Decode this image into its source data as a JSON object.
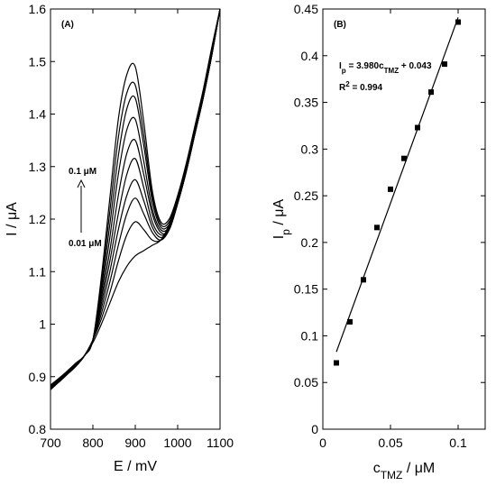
{
  "chart_data": [
    {
      "panel_label": "(A)",
      "type": "line",
      "xlabel": "E / mV",
      "ylabel": "I / μA",
      "xlim": [
        700,
        1100
      ],
      "ylim": [
        0.8,
        1.6
      ],
      "xticks": [
        700,
        800,
        900,
        1000,
        1100
      ],
      "yticks": [
        0.8,
        0.9,
        1.0,
        1.1,
        1.2,
        1.3,
        1.4,
        1.5,
        1.6
      ],
      "xtick_labels": [
        "700",
        "800",
        "900",
        "1000",
        "1100"
      ],
      "ytick_labels": [
        "0.8",
        "0.9",
        "1",
        "1.1",
        "1.2",
        "1.3",
        "1.4",
        "1.5",
        "1.6"
      ],
      "grid": false,
      "arrow_top_label": "0.1 μM",
      "arrow_bottom_label": "0.01 μM",
      "x": [
        700,
        720,
        740,
        760,
        780,
        800,
        820,
        840,
        860,
        880,
        900,
        920,
        940,
        960,
        980,
        1000,
        1020,
        1040,
        1060,
        1080,
        1100
      ],
      "series": [
        {
          "values": [
            0.875,
            0.89,
            0.905,
            0.92,
            0.94,
            0.965,
            1.0,
            1.04,
            1.08,
            1.11,
            1.13,
            1.14,
            1.15,
            1.16,
            1.19,
            1.24,
            1.3,
            1.37,
            1.44,
            1.52,
            1.6
          ]
        },
        {
          "values": [
            0.876,
            0.89,
            0.905,
            0.92,
            0.94,
            0.97,
            1.01,
            1.06,
            1.12,
            1.17,
            1.195,
            1.18,
            1.16,
            1.16,
            1.185,
            1.235,
            1.295,
            1.365,
            1.435,
            1.515,
            1.6
          ]
        },
        {
          "values": [
            0.877,
            0.89,
            0.905,
            0.92,
            0.94,
            0.97,
            1.02,
            1.08,
            1.15,
            1.21,
            1.24,
            1.21,
            1.175,
            1.16,
            1.18,
            1.23,
            1.29,
            1.36,
            1.43,
            1.51,
            1.6
          ]
        },
        {
          "values": [
            0.878,
            0.89,
            0.905,
            0.92,
            0.94,
            0.97,
            1.03,
            1.1,
            1.18,
            1.245,
            1.275,
            1.235,
            1.185,
            1.165,
            1.18,
            1.23,
            1.29,
            1.36,
            1.43,
            1.51,
            1.6
          ]
        },
        {
          "values": [
            0.879,
            0.892,
            0.906,
            0.92,
            0.94,
            0.97,
            1.04,
            1.12,
            1.21,
            1.285,
            1.315,
            1.26,
            1.195,
            1.17,
            1.18,
            1.23,
            1.29,
            1.36,
            1.43,
            1.51,
            1.6
          ]
        },
        {
          "values": [
            0.88,
            0.893,
            0.907,
            0.922,
            0.94,
            0.97,
            1.05,
            1.14,
            1.245,
            1.325,
            1.35,
            1.285,
            1.21,
            1.175,
            1.18,
            1.23,
            1.29,
            1.36,
            1.43,
            1.51,
            1.6
          ]
        },
        {
          "values": [
            0.881,
            0.894,
            0.908,
            0.923,
            0.94,
            0.97,
            1.06,
            1.165,
            1.285,
            1.37,
            1.39,
            1.31,
            1.22,
            1.18,
            1.185,
            1.23,
            1.29,
            1.36,
            1.43,
            1.51,
            1.6
          ]
        },
        {
          "values": [
            0.882,
            0.895,
            0.909,
            0.924,
            0.94,
            0.97,
            1.07,
            1.19,
            1.32,
            1.41,
            1.43,
            1.34,
            1.235,
            1.185,
            1.19,
            1.235,
            1.295,
            1.365,
            1.435,
            1.515,
            1.6
          ]
        },
        {
          "values": [
            0.883,
            0.896,
            0.91,
            0.925,
            0.94,
            0.97,
            1.08,
            1.215,
            1.355,
            1.44,
            1.455,
            1.36,
            1.245,
            1.19,
            1.195,
            1.24,
            1.3,
            1.37,
            1.44,
            1.52,
            1.6
          ]
        },
        {
          "values": [
            0.884,
            0.897,
            0.911,
            0.926,
            0.94,
            0.97,
            1.09,
            1.24,
            1.39,
            1.475,
            1.49,
            1.385,
            1.255,
            1.195,
            1.2,
            1.245,
            1.305,
            1.375,
            1.445,
            1.525,
            1.6
          ]
        }
      ]
    },
    {
      "panel_label": "(B)",
      "type": "scatter",
      "xlabel": "c_TMZ / μM",
      "ylabel": "I_p / μA",
      "xlim": [
        0,
        0.12
      ],
      "ylim": [
        0,
        0.45
      ],
      "xticks": [
        0,
        0.05,
        0.1
      ],
      "yticks": [
        0,
        0.05,
        0.1,
        0.15,
        0.2,
        0.25,
        0.3,
        0.35,
        0.4,
        0.45
      ],
      "xtick_labels": [
        "0",
        "0.05",
        "0.1"
      ],
      "ytick_labels": [
        "0",
        "0.05",
        "0.1",
        "0.15",
        "0.2",
        "0.25",
        "0.3",
        "0.35",
        "0.4",
        "0.45"
      ],
      "grid": false,
      "equation": "I_p = 3.980c_TMZ + 0.043",
      "r_squared": "R² = 0.994",
      "points": {
        "x": [
          0.01,
          0.02,
          0.03,
          0.04,
          0.05,
          0.06,
          0.07,
          0.08,
          0.09,
          0.1
        ],
        "y": [
          0.071,
          0.115,
          0.16,
          0.216,
          0.257,
          0.29,
          0.323,
          0.361,
          0.391,
          0.436
        ]
      },
      "fit_line": {
        "slope": 3.98,
        "intercept": 0.043,
        "x_range": [
          0.01,
          0.1
        ]
      }
    }
  ]
}
